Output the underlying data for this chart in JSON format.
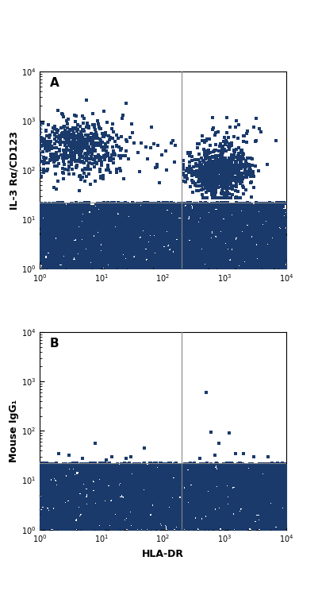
{
  "panel_A_label": "A",
  "panel_B_label": "B",
  "ylabel_A": "IL-3 Rα/CD123",
  "ylabel_B": "Mouse IgG₁",
  "xlabel": "HLA-DR",
  "xlim": [
    1,
    10000
  ],
  "ylim": [
    1,
    10000
  ],
  "vline_x": 200,
  "hline_y_A": 22,
  "hline_y_B": 22,
  "dot_color": "#1a3a6b",
  "line_color": "#888888",
  "bg_color": "#ffffff",
  "marker_size": 6,
  "marker_size_large": 10
}
